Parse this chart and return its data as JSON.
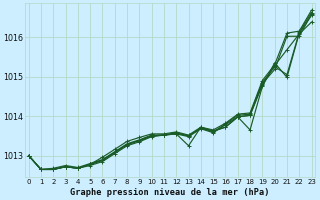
{
  "title": "Graphe pression niveau de la mer (hPa)",
  "bg_color": "#cceeff",
  "grid_color": "#b5d9c8",
  "line_color": "#1a5c28",
  "x_ticks": [
    0,
    1,
    2,
    3,
    4,
    5,
    6,
    7,
    8,
    9,
    10,
    11,
    12,
    13,
    14,
    15,
    16,
    17,
    18,
    19,
    20,
    21,
    22,
    23
  ],
  "ylim": [
    1012.45,
    1016.85
  ],
  "yticks": [
    1013,
    1014,
    1015,
    1016
  ],
  "series": [
    [
      1013.0,
      1012.65,
      1012.65,
      1012.72,
      1012.68,
      1012.75,
      1012.85,
      1013.05,
      1013.25,
      1013.35,
      1013.48,
      1013.52,
      1013.58,
      1013.5,
      1013.7,
      1013.62,
      1013.72,
      1013.98,
      1014.02,
      1014.78,
      1015.28,
      1015.68,
      1016.08,
      1016.38
    ],
    [
      1013.0,
      1012.65,
      1012.65,
      1012.72,
      1012.68,
      1012.78,
      1012.88,
      1013.08,
      1013.28,
      1013.38,
      1013.5,
      1013.52,
      1013.55,
      1013.25,
      1013.72,
      1013.62,
      1013.72,
      1013.98,
      1013.65,
      1014.75,
      1015.35,
      1014.98,
      1016.1,
      1016.55
    ],
    [
      1013.0,
      1012.65,
      1012.65,
      1012.72,
      1012.68,
      1012.78,
      1012.88,
      1013.08,
      1013.28,
      1013.38,
      1013.5,
      1013.52,
      1013.55,
      1013.48,
      1013.68,
      1013.58,
      1013.78,
      1013.98,
      1014.02,
      1014.82,
      1015.18,
      1016.02,
      1016.02,
      1016.58
    ],
    [
      1013.0,
      1012.65,
      1012.68,
      1012.75,
      1012.7,
      1012.8,
      1012.9,
      1013.1,
      1013.3,
      1013.4,
      1013.52,
      1013.52,
      1013.57,
      1013.5,
      1013.7,
      1013.6,
      1013.8,
      1014.02,
      1014.05,
      1014.85,
      1015.25,
      1015.05,
      1016.12,
      1016.62
    ],
    [
      1013.0,
      1012.65,
      1012.65,
      1012.72,
      1012.68,
      1012.78,
      1012.96,
      1013.16,
      1013.36,
      1013.46,
      1013.55,
      1013.55,
      1013.6,
      1013.52,
      1013.72,
      1013.65,
      1013.82,
      1014.05,
      1014.08,
      1014.9,
      1015.3,
      1016.1,
      1016.15,
      1016.68
    ]
  ]
}
